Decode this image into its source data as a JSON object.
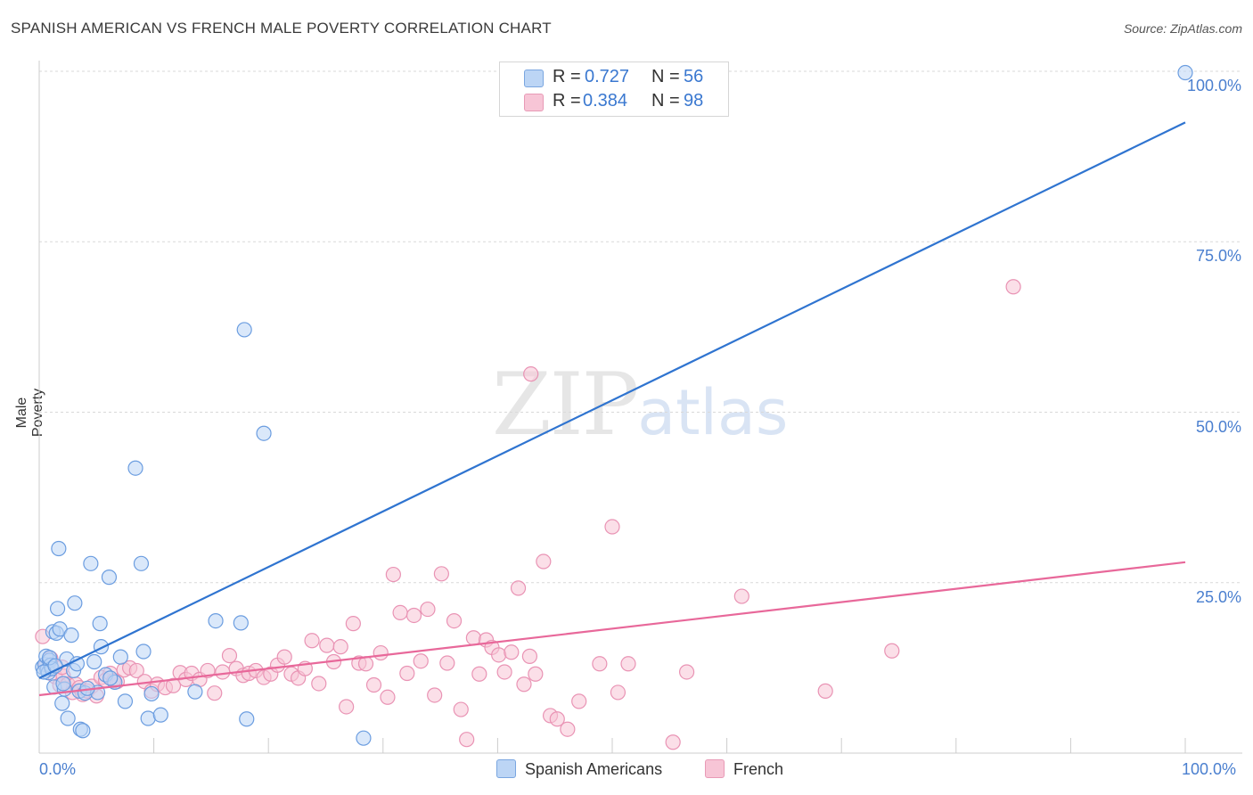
{
  "title": "SPANISH AMERICAN VS FRENCH MALE POVERTY CORRELATION CHART",
  "source": "Source: ZipAtlas.com",
  "watermark": {
    "zip": "ZIP",
    "atlas": "atlas"
  },
  "colors": {
    "blue": "#2f74d0",
    "blue_fill": "#bcd5f5",
    "pink": "#e8689a",
    "pink_fill": "#f7c5d6",
    "grid": "#d9d9d9",
    "tick_text": "#4a7fcf"
  },
  "stats": [
    {
      "r_label": "R =",
      "r": "0.727",
      "n_label": "N =",
      "n": "56",
      "color": "blue"
    },
    {
      "r_label": "R =",
      "r": "0.384",
      "n_label": "N =",
      "n": "98",
      "color": "pink"
    }
  ],
  "legend": [
    "Spanish Americans",
    "French"
  ],
  "chart_data": {
    "type": "scatter",
    "title": "SPANISH AMERICAN VS FRENCH MALE POVERTY CORRELATION CHART",
    "xlabel": "",
    "ylabel": "Male Poverty",
    "xlim": [
      0,
      100
    ],
    "ylim": [
      0,
      100
    ],
    "x_tick_labels": [
      "0.0%",
      "100.0%"
    ],
    "y_tick_labels": [
      "25.0%",
      "50.0%",
      "75.0%",
      "100.0%"
    ],
    "y_ticks": [
      25,
      50,
      75,
      100
    ],
    "series": [
      {
        "name": "Spanish Americans",
        "color": "blue",
        "R": 0.727,
        "N": 56,
        "trend": {
          "x": [
            0,
            100
          ],
          "y": [
            11.0,
            92.5
          ]
        },
        "points": [
          [
            0.3,
            12.6
          ],
          [
            0.5,
            13.0
          ],
          [
            0.6,
            14.2
          ],
          [
            0.7,
            12.2
          ],
          [
            0.8,
            11.8
          ],
          [
            0.9,
            13.6
          ],
          [
            1.0,
            12.9
          ],
          [
            1.1,
            12.4
          ],
          [
            1.2,
            17.8
          ],
          [
            1.3,
            9.7
          ],
          [
            1.5,
            17.6
          ],
          [
            1.6,
            21.2
          ],
          [
            1.7,
            30.0
          ],
          [
            1.8,
            18.2
          ],
          [
            2.0,
            7.3
          ],
          [
            2.2,
            9.4
          ],
          [
            2.4,
            13.8
          ],
          [
            2.5,
            5.1
          ],
          [
            2.8,
            17.3
          ],
          [
            3.0,
            12.1
          ],
          [
            3.1,
            22.0
          ],
          [
            3.3,
            13.1
          ],
          [
            3.5,
            9.1
          ],
          [
            3.6,
            3.5
          ],
          [
            3.8,
            3.3
          ],
          [
            4.0,
            8.8
          ],
          [
            4.5,
            27.8
          ],
          [
            4.8,
            13.4
          ],
          [
            5.1,
            8.9
          ],
          [
            5.3,
            19.0
          ],
          [
            5.4,
            15.6
          ],
          [
            5.8,
            11.5
          ],
          [
            6.1,
            25.8
          ],
          [
            6.6,
            10.4
          ],
          [
            7.1,
            14.1
          ],
          [
            7.5,
            7.6
          ],
          [
            8.4,
            41.8
          ],
          [
            8.9,
            27.8
          ],
          [
            9.1,
            14.9
          ],
          [
            9.5,
            5.1
          ],
          [
            9.8,
            8.7
          ],
          [
            10.6,
            5.6
          ],
          [
            13.6,
            9.0
          ],
          [
            15.4,
            19.4
          ],
          [
            17.6,
            19.1
          ],
          [
            17.9,
            62.1
          ],
          [
            18.1,
            5.0
          ],
          [
            19.6,
            46.9
          ],
          [
            28.3,
            2.2
          ],
          [
            100.0,
            99.8
          ],
          [
            0.4,
            11.9
          ],
          [
            0.9,
            14.0
          ],
          [
            1.4,
            12.8
          ],
          [
            2.1,
            10.2
          ],
          [
            4.2,
            9.5
          ],
          [
            6.2,
            11.0
          ]
        ]
      },
      {
        "name": "French",
        "color": "pink",
        "R": 0.384,
        "N": 98,
        "trend": {
          "x": [
            0,
            100
          ],
          "y": [
            8.5,
            28.0
          ]
        },
        "points": [
          [
            0.3,
            17.1
          ],
          [
            0.6,
            12.9
          ],
          [
            1.0,
            13.9
          ],
          [
            1.4,
            11.2
          ],
          [
            1.8,
            10.0
          ],
          [
            2.1,
            11.3
          ],
          [
            2.5,
            10.1
          ],
          [
            2.9,
            8.9
          ],
          [
            3.2,
            10.1
          ],
          [
            3.5,
            9.6
          ],
          [
            3.8,
            8.6
          ],
          [
            4.2,
            9.1
          ],
          [
            4.6,
            9.8
          ],
          [
            5.0,
            8.4
          ],
          [
            5.4,
            11.1
          ],
          [
            5.8,
            10.7
          ],
          [
            6.2,
            11.7
          ],
          [
            6.8,
            10.5
          ],
          [
            7.4,
            12.2
          ],
          [
            7.9,
            12.5
          ],
          [
            8.5,
            12.1
          ],
          [
            9.2,
            10.5
          ],
          [
            9.8,
            9.1
          ],
          [
            10.3,
            10.1
          ],
          [
            11.0,
            9.6
          ],
          [
            11.7,
            9.9
          ],
          [
            12.3,
            11.8
          ],
          [
            12.8,
            10.8
          ],
          [
            13.3,
            11.7
          ],
          [
            14.0,
            10.8
          ],
          [
            14.7,
            12.1
          ],
          [
            15.3,
            8.8
          ],
          [
            16.0,
            11.9
          ],
          [
            16.6,
            14.3
          ],
          [
            17.2,
            12.4
          ],
          [
            17.8,
            11.4
          ],
          [
            18.3,
            11.7
          ],
          [
            18.9,
            12.1
          ],
          [
            19.6,
            11.1
          ],
          [
            20.2,
            11.6
          ],
          [
            20.8,
            12.9
          ],
          [
            21.4,
            14.1
          ],
          [
            22.0,
            11.6
          ],
          [
            22.6,
            11.0
          ],
          [
            23.2,
            12.4
          ],
          [
            23.8,
            16.5
          ],
          [
            24.4,
            10.2
          ],
          [
            25.1,
            15.8
          ],
          [
            25.7,
            13.4
          ],
          [
            26.3,
            15.6
          ],
          [
            26.8,
            6.8
          ],
          [
            27.4,
            19.0
          ],
          [
            27.9,
            13.2
          ],
          [
            28.5,
            13.1
          ],
          [
            29.2,
            10.0
          ],
          [
            29.8,
            14.7
          ],
          [
            30.4,
            8.2
          ],
          [
            30.9,
            26.2
          ],
          [
            31.5,
            20.6
          ],
          [
            32.1,
            11.7
          ],
          [
            32.7,
            20.2
          ],
          [
            33.3,
            13.5
          ],
          [
            33.9,
            21.1
          ],
          [
            34.5,
            8.5
          ],
          [
            35.1,
            26.3
          ],
          [
            35.6,
            13.2
          ],
          [
            36.2,
            19.4
          ],
          [
            36.8,
            6.4
          ],
          [
            37.3,
            2.0
          ],
          [
            37.9,
            16.9
          ],
          [
            38.4,
            11.6
          ],
          [
            39.0,
            16.6
          ],
          [
            39.5,
            15.5
          ],
          [
            40.1,
            14.4
          ],
          [
            40.6,
            11.9
          ],
          [
            41.2,
            14.8
          ],
          [
            41.8,
            24.2
          ],
          [
            42.3,
            10.1
          ],
          [
            42.8,
            14.2
          ],
          [
            43.3,
            11.6
          ],
          [
            44.0,
            28.1
          ],
          [
            44.6,
            5.5
          ],
          [
            45.2,
            5.0
          ],
          [
            46.1,
            3.5
          ],
          [
            47.1,
            7.6
          ],
          [
            48.9,
            13.1
          ],
          [
            50.0,
            33.2
          ],
          [
            50.5,
            8.9
          ],
          [
            51.4,
            13.1
          ],
          [
            55.3,
            1.6
          ],
          [
            56.5,
            11.9
          ],
          [
            61.3,
            23.0
          ],
          [
            68.6,
            9.1
          ],
          [
            74.4,
            15.0
          ],
          [
            85.0,
            68.4
          ],
          [
            42.9,
            55.6
          ],
          [
            2.0,
            12.6
          ],
          [
            6.5,
            10.6
          ]
        ]
      }
    ]
  }
}
